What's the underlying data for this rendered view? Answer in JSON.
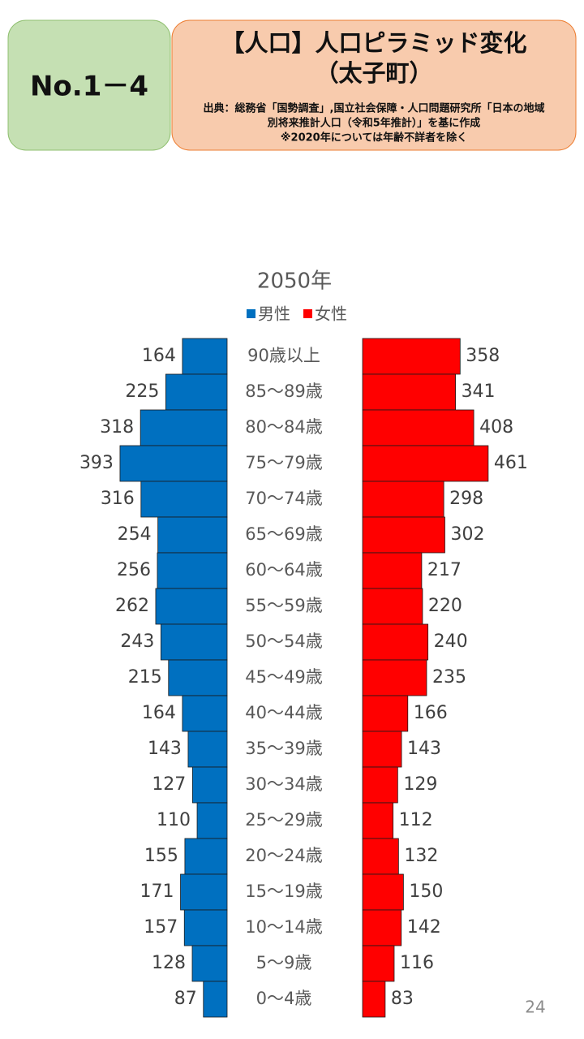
{
  "header": {
    "number": "No.1－4",
    "title_lines": [
      "【人口】人口ピラミッド変化",
      "（太子町）"
    ],
    "source_lines": [
      "出典：総務省「国勢調査」,国立社会保障・人口問題研究所「日本の地域",
      "別将来推計人口（令和5年推計）」を基に作成",
      "※2020年については年齢不詳者を除く"
    ]
  },
  "page_number": "24",
  "chart_data": {
    "type": "pyramid",
    "title": "2050年",
    "legend": true,
    "categories": [
      "90歳以上",
      "85～89歳",
      "80～84歳",
      "75～79歳",
      "70～74歳",
      "65～69歳",
      "60～64歳",
      "55～59歳",
      "50～54歳",
      "45～49歳",
      "40～44歳",
      "35～39歳",
      "30～34歳",
      "25～29歳",
      "20～24歳",
      "15～19歳",
      "10～14歳",
      "5～9歳",
      "0～4歳"
    ],
    "series": [
      {
        "name": "男性",
        "color": "#0070c0",
        "values": [
          164,
          225,
          318,
          393,
          316,
          254,
          256,
          262,
          243,
          215,
          164,
          143,
          127,
          110,
          155,
          171,
          157,
          128,
          87
        ]
      },
      {
        "name": "女性",
        "color": "#ff0000",
        "values": [
          358,
          341,
          408,
          461,
          298,
          302,
          217,
          220,
          240,
          235,
          166,
          143,
          129,
          112,
          132,
          150,
          142,
          116,
          83
        ]
      }
    ]
  }
}
